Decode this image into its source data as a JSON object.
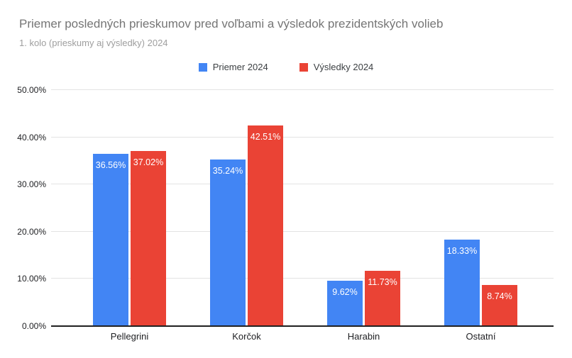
{
  "page": {
    "background": "#ffffff"
  },
  "chart_data": {
    "type": "bar",
    "title": "Priemer posledných prieskumov pred voľbami a výsledok prezidentských volieb",
    "subtitle": "1. kolo (prieskumy aj výsledky) 2024",
    "categories": [
      "Pellegrini",
      "Korčok",
      "Harabin",
      "Ostatní"
    ],
    "series": [
      {
        "name": "Priemer 2024",
        "color": "#4285f4",
        "values": [
          36.56,
          35.24,
          9.62,
          18.33
        ],
        "labels": [
          "36.56%",
          "35.24%",
          "9.62%",
          "18.33%"
        ]
      },
      {
        "name": "Výsledky 2024",
        "color": "#ea4335",
        "values": [
          37.02,
          42.51,
          11.73,
          8.74
        ],
        "labels": [
          "37.02%",
          "42.51%",
          "11.73%",
          "8.74%"
        ]
      }
    ],
    "ylim": [
      0,
      50
    ],
    "yticks": [
      "0.00%",
      "10.00%",
      "20.00%",
      "30.00%",
      "40.00%",
      "50.00%"
    ],
    "grid": true,
    "legend_position": "top",
    "axis_line_color": "#212121",
    "gridline_color": "#e3e3e3",
    "title_color": "#757575",
    "subtitle_color": "#9e9e9e"
  }
}
